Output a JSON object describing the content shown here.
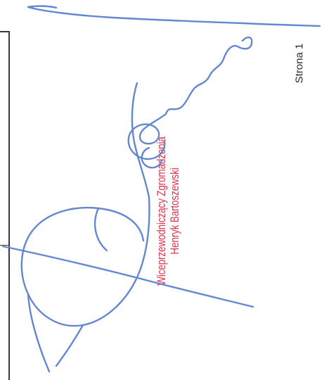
{
  "page": {
    "number_label": "Strona 1"
  },
  "stamp": {
    "title": "Wiceprzewodniczący Zgromadzenia",
    "name": "Henryk Bartoszewski",
    "color": "#d7263d"
  },
  "signature": {
    "ink_color": "#5b82cf"
  }
}
